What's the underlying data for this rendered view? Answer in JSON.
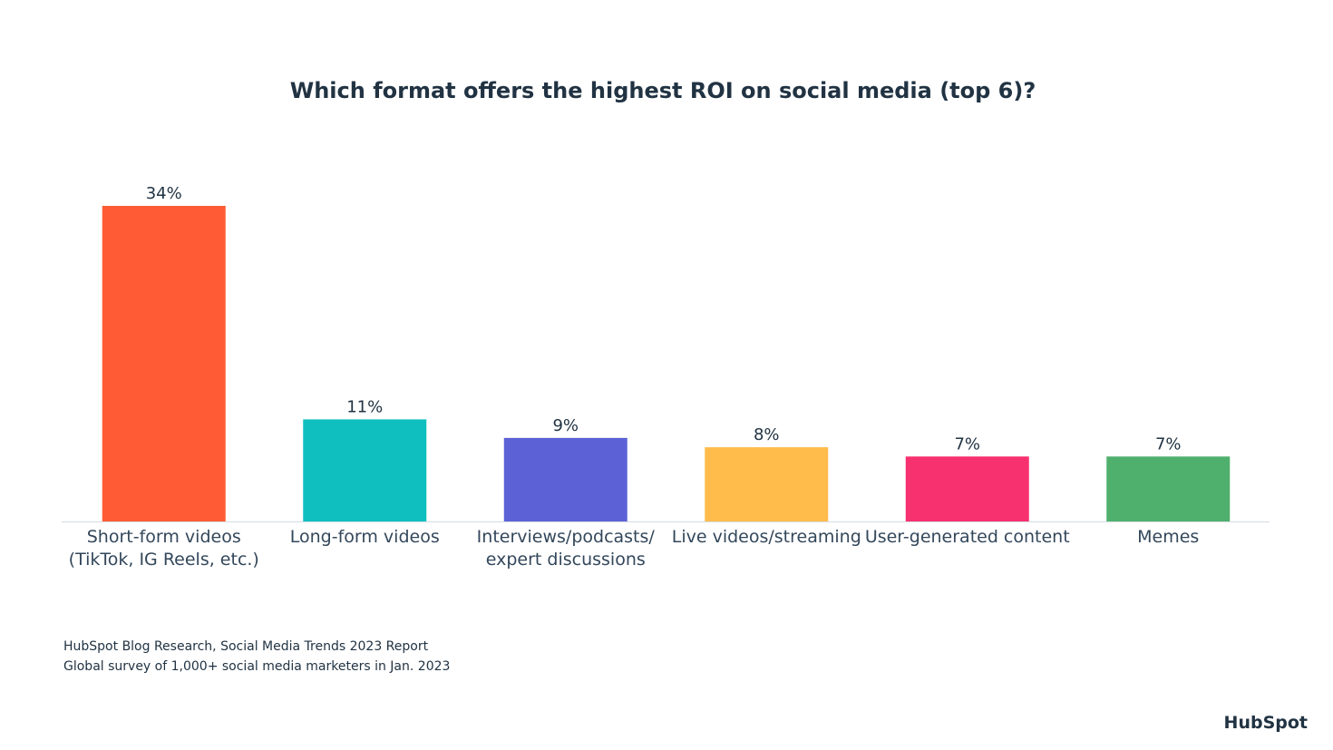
{
  "chart_data": {
    "type": "bar",
    "title": "Which format offers the highest ROI on social media (top 6)?",
    "categories": [
      "Short-form videos (TikTok, IG Reels, etc.)",
      "Long-form videos",
      "Interviews/podcasts/ expert discussions",
      "Live videos/streaming",
      "User-generated content",
      "Memes"
    ],
    "values": [
      34,
      11,
      9,
      8,
      7,
      7
    ],
    "value_labels": [
      "34%",
      "11%",
      "9%",
      "8%",
      "7%",
      "7%"
    ],
    "colors": [
      "#ff5c35",
      "#0fbfbf",
      "#5c62d6",
      "#ffbc4b",
      "#f7306f",
      "#4fb06d"
    ],
    "source": [
      "HubSpot Blog Research, Social Media Trends 2023 Report",
      "Global survey of 1,000+ social media marketers in Jan. 2023"
    ],
    "logo": "HubSpot"
  }
}
